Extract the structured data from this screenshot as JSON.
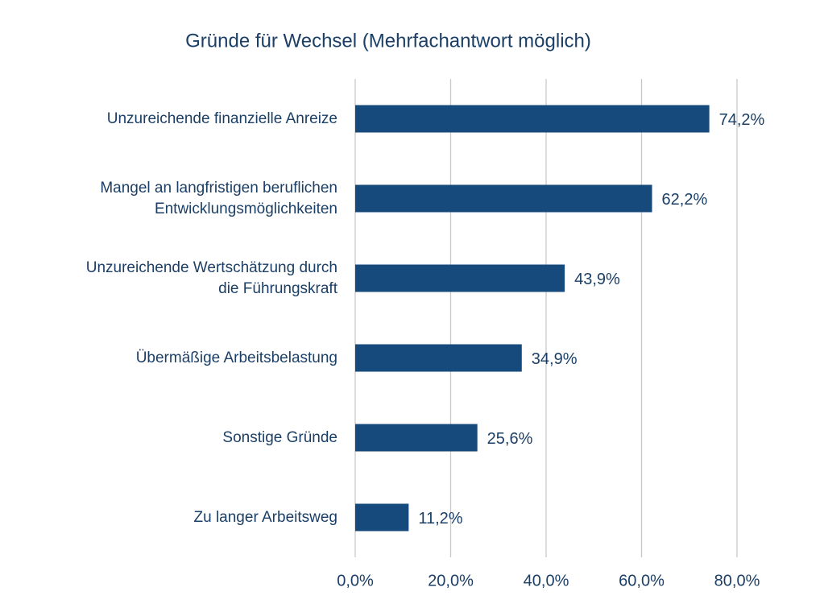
{
  "chart_data": {
    "type": "hbar",
    "title": "Gründe für Wechsel (Mehrfachantwort möglich)",
    "categories": [
      "Unzureichende finanzielle Anreize",
      "Mangel an langfristigen beruflichen\nEntwicklungsmöglichkeiten",
      "Unzureichende Wertschätzung durch\ndie Führungskraft",
      "Übermäßige Arbeitsbelastung",
      "Sonstige Gründe",
      "Zu langer Arbeitsweg"
    ],
    "values": [
      74.2,
      62.2,
      43.9,
      34.9,
      25.6,
      11.2
    ],
    "value_labels": [
      "74,2%",
      "62,2%",
      "43,9%",
      "34,9%",
      "25,6%",
      "11,2%"
    ],
    "color": "#174a7c",
    "xlim": [
      0,
      80
    ],
    "xticks": [
      {
        "value": 0,
        "label": "0,0%"
      },
      {
        "value": 20,
        "label": "20,0%"
      },
      {
        "value": 40,
        "label": "40,0%"
      },
      {
        "value": 60,
        "label": "60,0%"
      },
      {
        "value": 80,
        "label": "80,0%"
      }
    ],
    "grid": true
  }
}
